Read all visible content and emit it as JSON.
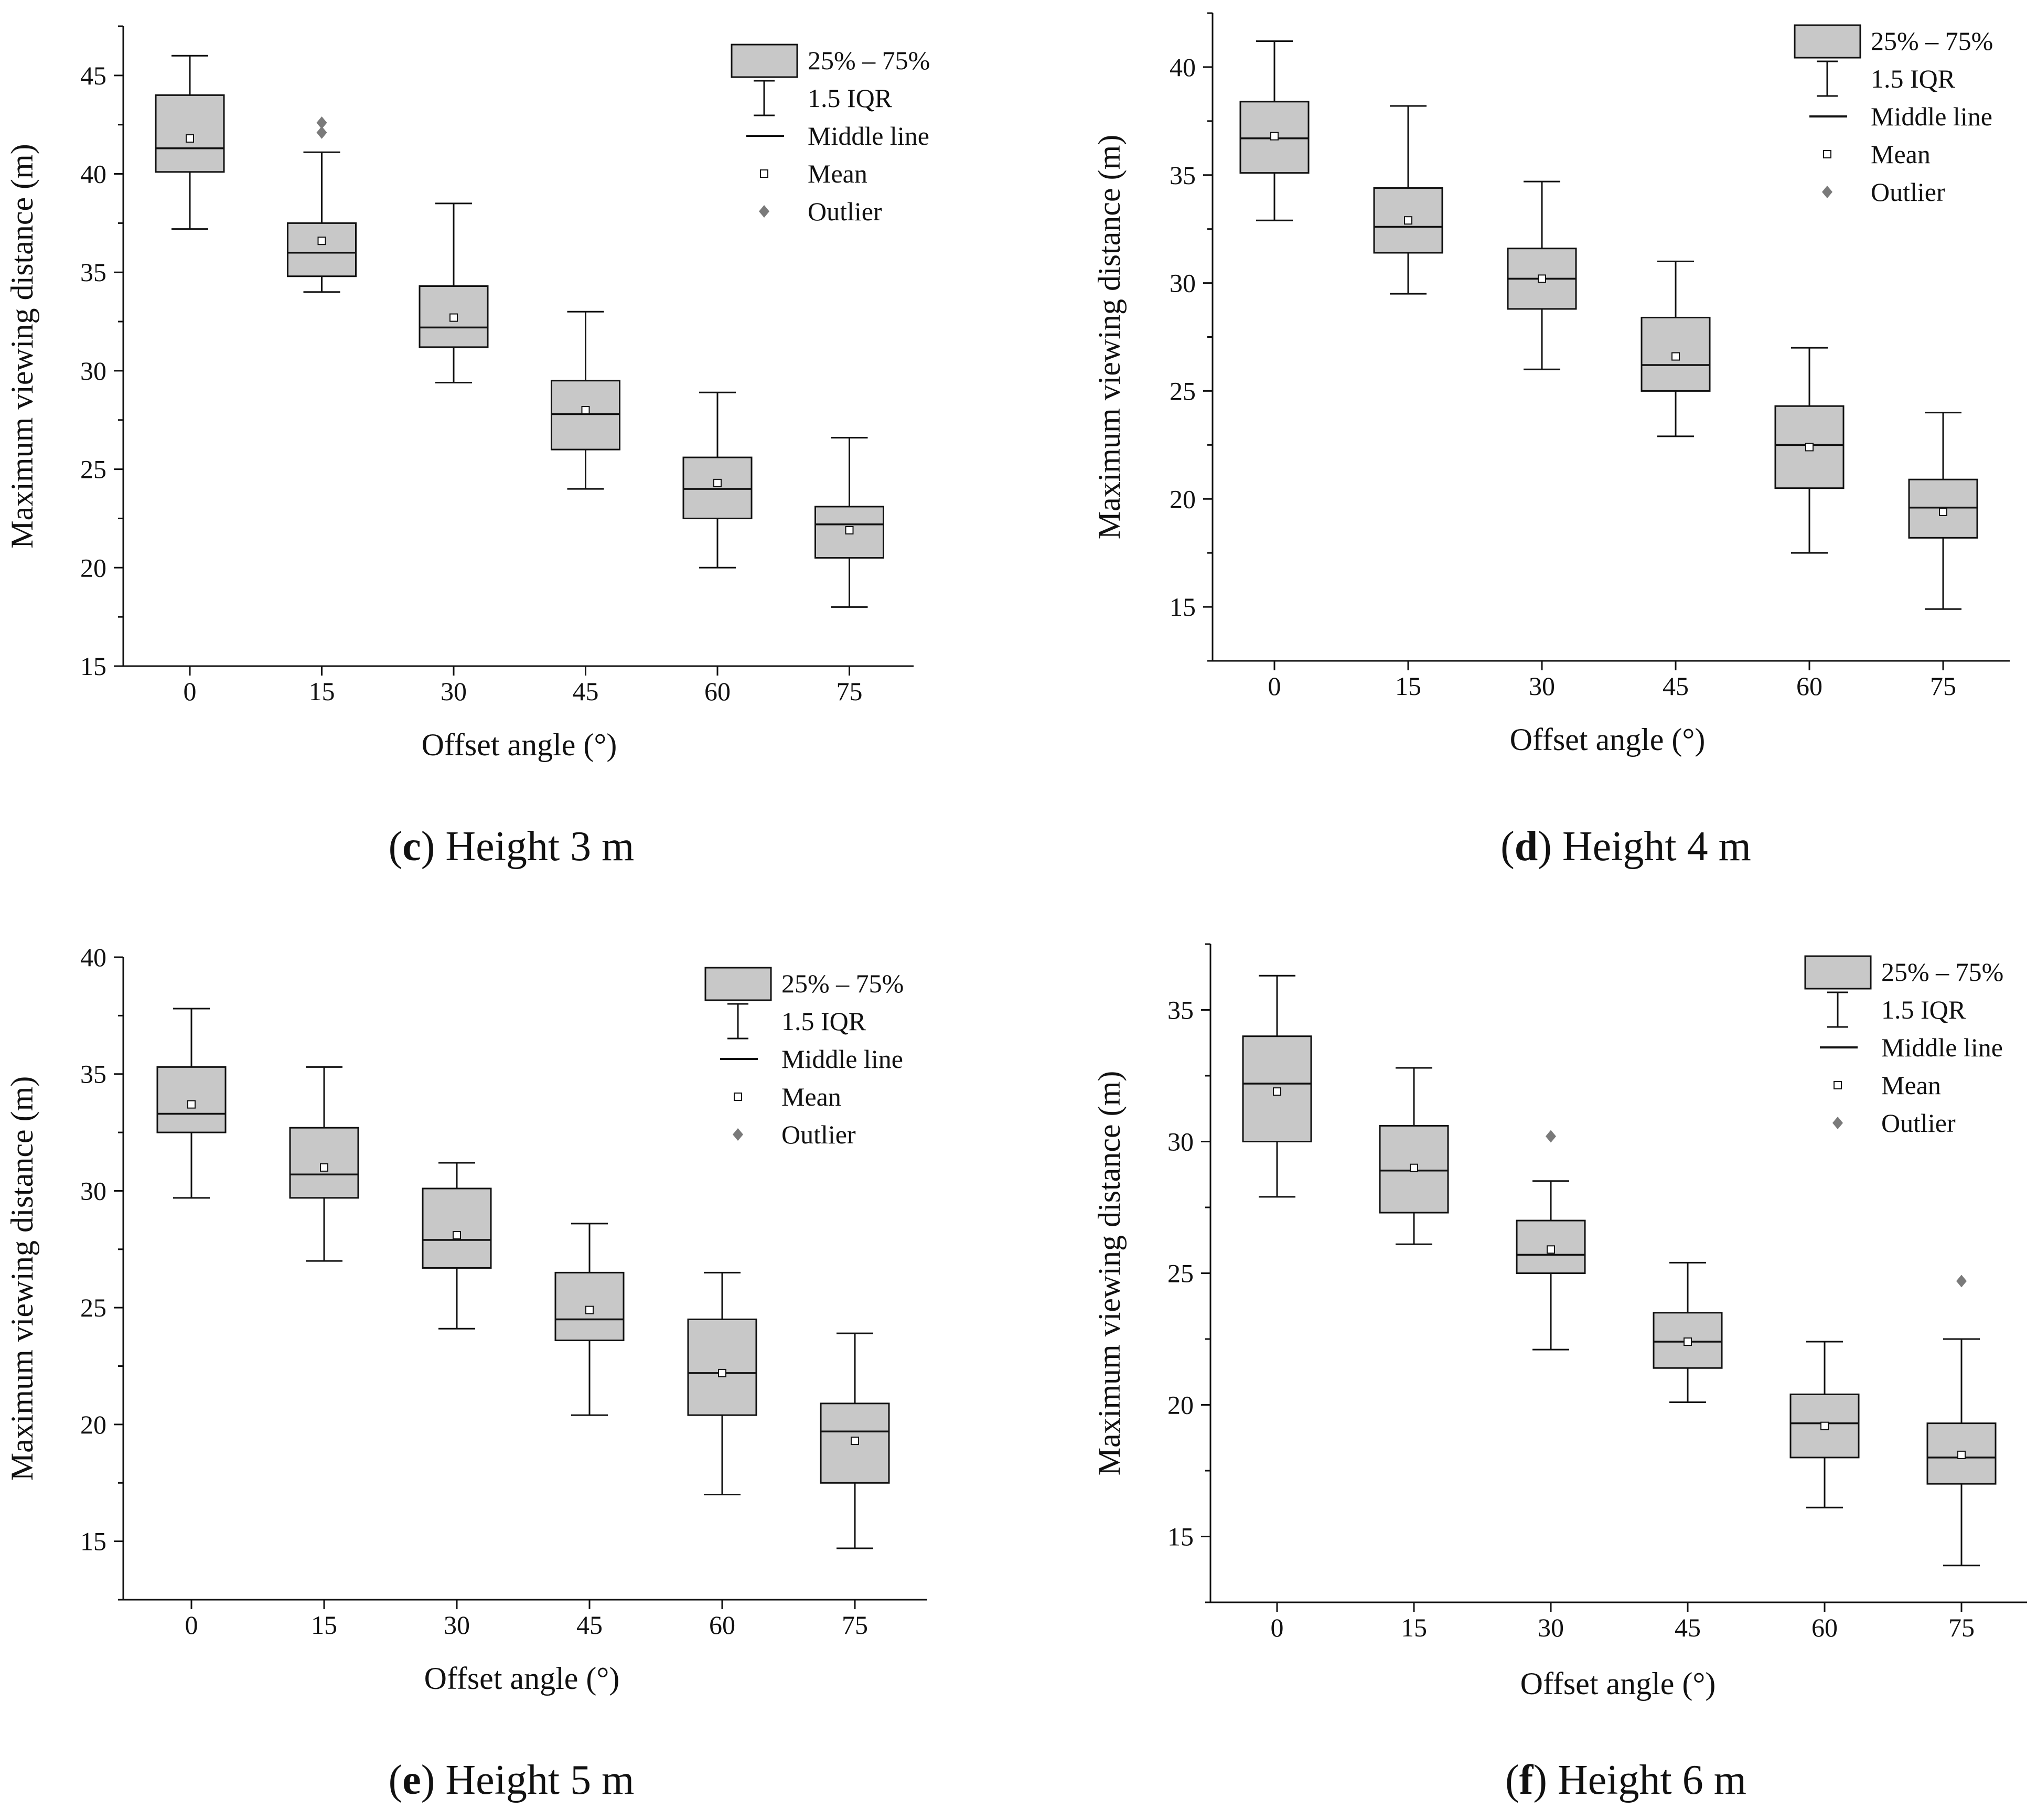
{
  "legend": {
    "box": "25% – 75%",
    "whisker": "1.5 IQR",
    "median": "Middle line",
    "mean": "Mean",
    "outlier": "Outlier"
  },
  "colors": {
    "box_fill": "#c8c8c8",
    "stroke": "#111111",
    "outlier": "#7a7a7a",
    "mean_fill": "#ffffff"
  },
  "chart_data": [
    {
      "id": "c",
      "type": "box",
      "caption": {
        "letter": "c",
        "text": "Height 3 m"
      },
      "xlabel": "Offset angle (°)",
      "ylabel": "Maximum viewing distance (m)",
      "categories": [
        "0",
        "15",
        "30",
        "45",
        "60",
        "75"
      ],
      "ylim": [
        15,
        47.5
      ],
      "yticks": [
        15,
        20,
        25,
        30,
        35,
        40,
        45
      ],
      "legend_position": "top-right",
      "boxes": [
        {
          "min": 37.2,
          "q1": 40.1,
          "median": 41.3,
          "q3": 44.0,
          "max": 46.0,
          "mean": 41.8,
          "outliers": []
        },
        {
          "min": 34.0,
          "q1": 34.8,
          "median": 36.0,
          "q3": 37.5,
          "max": 41.1,
          "mean": 36.6,
          "outliers": [
            42.1,
            42.6
          ]
        },
        {
          "min": 29.4,
          "q1": 31.2,
          "median": 32.2,
          "q3": 34.3,
          "max": 38.5,
          "mean": 32.7,
          "outliers": []
        },
        {
          "min": 24.0,
          "q1": 26.0,
          "median": 27.8,
          "q3": 29.5,
          "max": 33.0,
          "mean": 28.0,
          "outliers": []
        },
        {
          "min": 20.0,
          "q1": 22.5,
          "median": 24.0,
          "q3": 25.6,
          "max": 28.9,
          "mean": 24.3,
          "outliers": []
        },
        {
          "min": 18.0,
          "q1": 20.5,
          "median": 22.2,
          "q3": 23.1,
          "max": 26.6,
          "mean": 21.9,
          "outliers": []
        }
      ]
    },
    {
      "id": "d",
      "type": "box",
      "caption": {
        "letter": "d",
        "text": "Height 4 m"
      },
      "xlabel": "Offset angle (°)",
      "ylabel": "Maximum viewing distance (m)",
      "categories": [
        "0",
        "15",
        "30",
        "45",
        "60",
        "75"
      ],
      "ylim": [
        12.5,
        42.5
      ],
      "yticks": [
        15,
        20,
        25,
        30,
        35,
        40
      ],
      "legend_position": "top-right",
      "boxes": [
        {
          "min": 32.9,
          "q1": 35.1,
          "median": 36.7,
          "q3": 38.4,
          "max": 41.2,
          "mean": 36.8,
          "outliers": []
        },
        {
          "min": 29.5,
          "q1": 31.4,
          "median": 32.6,
          "q3": 34.4,
          "max": 38.2,
          "mean": 32.9,
          "outliers": []
        },
        {
          "min": 26.0,
          "q1": 28.8,
          "median": 30.2,
          "q3": 31.6,
          "max": 34.7,
          "mean": 30.2,
          "outliers": []
        },
        {
          "min": 22.9,
          "q1": 25.0,
          "median": 26.2,
          "q3": 28.4,
          "max": 31.0,
          "mean": 26.6,
          "outliers": []
        },
        {
          "min": 17.5,
          "q1": 20.5,
          "median": 22.5,
          "q3": 24.3,
          "max": 27.0,
          "mean": 22.4,
          "outliers": []
        },
        {
          "min": 14.9,
          "q1": 18.2,
          "median": 19.6,
          "q3": 20.9,
          "max": 24.0,
          "mean": 19.4,
          "outliers": []
        }
      ]
    },
    {
      "id": "e",
      "type": "box",
      "caption": {
        "letter": "e",
        "text": "Height 5 m"
      },
      "xlabel": "Offset angle (°)",
      "ylabel": "Maximum viewing distance (m)",
      "categories": [
        "0",
        "15",
        "30",
        "45",
        "60",
        "75"
      ],
      "ylim": [
        12.5,
        40
      ],
      "yticks": [
        15,
        20,
        25,
        30,
        35,
        40
      ],
      "legend_position": "top-right",
      "boxes": [
        {
          "min": 29.7,
          "q1": 32.5,
          "median": 33.3,
          "q3": 35.3,
          "max": 37.8,
          "mean": 33.7,
          "outliers": []
        },
        {
          "min": 27.0,
          "q1": 29.7,
          "median": 30.7,
          "q3": 32.7,
          "max": 35.3,
          "mean": 31.0,
          "outliers": []
        },
        {
          "min": 24.1,
          "q1": 26.7,
          "median": 27.9,
          "q3": 30.1,
          "max": 31.2,
          "mean": 28.1,
          "outliers": []
        },
        {
          "min": 20.4,
          "q1": 23.6,
          "median": 24.5,
          "q3": 26.5,
          "max": 28.6,
          "mean": 24.9,
          "outliers": []
        },
        {
          "min": 17.0,
          "q1": 20.4,
          "median": 22.2,
          "q3": 24.5,
          "max": 26.5,
          "mean": 22.2,
          "outliers": []
        },
        {
          "min": 14.7,
          "q1": 17.5,
          "median": 19.7,
          "q3": 20.9,
          "max": 23.9,
          "mean": 19.3,
          "outliers": []
        }
      ]
    },
    {
      "id": "f",
      "type": "box",
      "caption": {
        "letter": "f",
        "text": "Height 6 m"
      },
      "xlabel": "Offset angle (°)",
      "ylabel": "Maximum viewing distance (m)",
      "categories": [
        "0",
        "15",
        "30",
        "45",
        "60",
        "75"
      ],
      "ylim": [
        12.5,
        37.5
      ],
      "yticks": [
        15,
        20,
        25,
        30,
        35
      ],
      "legend_position": "top-right",
      "boxes": [
        {
          "min": 27.9,
          "q1": 30.0,
          "median": 32.2,
          "q3": 34.0,
          "max": 36.3,
          "mean": 31.9,
          "outliers": []
        },
        {
          "min": 26.1,
          "q1": 27.3,
          "median": 28.9,
          "q3": 30.6,
          "max": 32.8,
          "mean": 29.0,
          "outliers": []
        },
        {
          "min": 22.1,
          "q1": 25.0,
          "median": 25.7,
          "q3": 27.0,
          "max": 28.5,
          "mean": 25.9,
          "outliers": [
            30.2
          ]
        },
        {
          "min": 20.1,
          "q1": 21.4,
          "median": 22.4,
          "q3": 23.5,
          "max": 25.4,
          "mean": 22.4,
          "outliers": []
        },
        {
          "min": 16.1,
          "q1": 18.0,
          "median": 19.3,
          "q3": 20.4,
          "max": 22.4,
          "mean": 19.2,
          "outliers": []
        },
        {
          "min": 13.9,
          "q1": 17.0,
          "median": 18.0,
          "q3": 19.3,
          "max": 22.5,
          "mean": 18.1,
          "outliers": [
            24.7
          ]
        }
      ]
    }
  ]
}
